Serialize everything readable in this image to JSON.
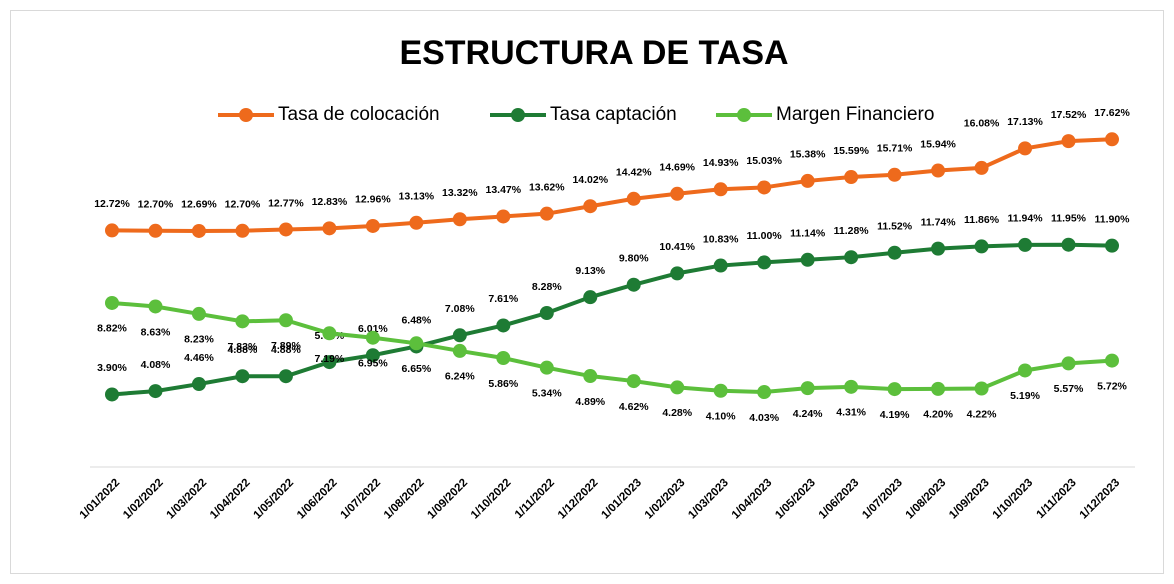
{
  "chart_data": {
    "type": "line",
    "title": "ESTRUCTURA DE TASA",
    "categories": [
      "1/01/2022",
      "1/02/2022",
      "1/03/2022",
      "1/04/2022",
      "1/05/2022",
      "1/06/2022",
      "1/07/2022",
      "1/08/2022",
      "1/09/2022",
      "1/10/2022",
      "1/11/2022",
      "1/12/2022",
      "1/01/2023",
      "1/02/2023",
      "1/03/2023",
      "1/04/2023",
      "1/05/2023",
      "1/06/2023",
      "1/07/2023",
      "1/08/2023",
      "1/09/2023",
      "1/10/2023",
      "1/11/2023",
      "1/12/2023"
    ],
    "ylim": [
      0,
      20
    ],
    "series": [
      {
        "name": "Tasa de colocación",
        "color": "#ee6a1c",
        "values": [
          12.72,
          12.7,
          12.69,
          12.7,
          12.77,
          12.83,
          12.96,
          13.13,
          13.32,
          13.47,
          13.62,
          14.02,
          14.42,
          14.69,
          14.93,
          15.03,
          15.38,
          15.59,
          15.71,
          15.94,
          16.08,
          17.13,
          17.52,
          17.62
        ],
        "value_labels": [
          "12.72%",
          "12.70%",
          "12.69%",
          "12.70%",
          "12.77%",
          "12.83%",
          "12.96%",
          "13.13%",
          "13.32%",
          "13.47%",
          "13.62%",
          "14.02%",
          "14.42%",
          "14.69%",
          "14.93%",
          "15.03%",
          "15.38%",
          "15.59%",
          "15.71%",
          "15.94%",
          "16.08%",
          "17.13%",
          "17.52%",
          "17.62%"
        ]
      },
      {
        "name": "Tasa captación",
        "color": "#1e7b34",
        "values": [
          3.9,
          4.08,
          4.46,
          4.88,
          4.88,
          5.64,
          6.01,
          6.48,
          7.08,
          7.61,
          8.28,
          9.13,
          9.8,
          10.41,
          10.83,
          11.0,
          11.14,
          11.28,
          11.52,
          11.74,
          11.86,
          11.94,
          11.95,
          11.9
        ],
        "value_labels": [
          "3.90%",
          "4.08%",
          "4.46%",
          "4.88%",
          "4.88%",
          "5.64%",
          "6.01%",
          "6.48%",
          "7.08%",
          "7.61%",
          "8.28%",
          "9.13%",
          "9.80%",
          "10.41%",
          "10.83%",
          "11.00%",
          "11.14%",
          "11.28%",
          "11.52%",
          "11.74%",
          "11.86%",
          "11.94%",
          "11.95%",
          "11.90%"
        ]
      },
      {
        "name": "Margen Financiero",
        "color": "#5cbf3c",
        "values": [
          8.82,
          8.63,
          8.23,
          7.83,
          7.89,
          7.19,
          6.95,
          6.65,
          6.24,
          5.86,
          5.34,
          4.89,
          4.62,
          4.28,
          4.1,
          4.03,
          4.24,
          4.31,
          4.19,
          4.2,
          4.22,
          5.19,
          5.57,
          5.72
        ],
        "value_labels": [
          "8.82%",
          "8.63%",
          "8.23%",
          "7.83%",
          "7.89%",
          "7.19%",
          "6.95%",
          "6.65%",
          "6.24%",
          "5.86%",
          "5.34%",
          "4.89%",
          "4.62%",
          "4.28%",
          "4.10%",
          "4.03%",
          "4.24%",
          "4.31%",
          "4.19%",
          "4.20%",
          "4.22%",
          "5.19%",
          "5.57%",
          "5.72%"
        ]
      }
    ]
  }
}
